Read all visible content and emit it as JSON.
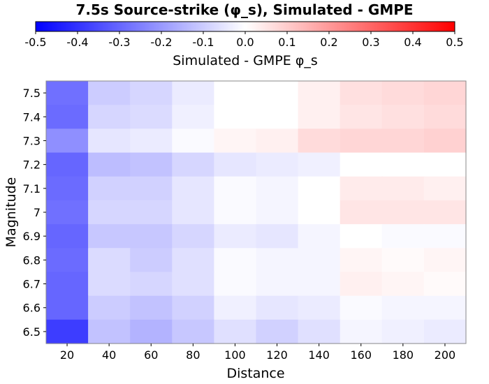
{
  "chart_data": {
    "type": "heatmap",
    "title": "7.5s Source-strike (φ_s), Simulated - GMPE",
    "colorbar": {
      "label": "Simulated - GMPE φ_s",
      "range": [
        -0.5,
        0.5
      ],
      "ticks": [
        "-0.5",
        "-0.4",
        "-0.3",
        "-0.2",
        "-0.1",
        "0.0",
        "0.1",
        "0.2",
        "0.3",
        "0.4",
        "0.5"
      ],
      "colors": {
        "low": "#0000ff",
        "mid": "#ffffff",
        "high": "#ff0000"
      }
    },
    "xlabel": "Distance",
    "ylabel": "Magnitude",
    "x": [
      20,
      40,
      60,
      80,
      100,
      120,
      140,
      160,
      180,
      200
    ],
    "x_tick_labels": [
      "20",
      "40",
      "60",
      "80",
      "100",
      "120",
      "140",
      "160",
      "180",
      "200"
    ],
    "y": [
      "7.5",
      "7.4",
      "7.3",
      "7.2",
      "7.1",
      "7",
      "6.9",
      "6.8",
      "6.7",
      "6.6",
      "6.5"
    ],
    "values": [
      [
        -0.28,
        -0.1,
        -0.08,
        -0.04,
        0.0,
        0.0,
        0.03,
        0.06,
        0.07,
        0.08
      ],
      [
        -0.29,
        -0.08,
        -0.07,
        -0.03,
        0.0,
        0.0,
        0.03,
        0.05,
        0.06,
        0.07
      ],
      [
        -0.22,
        -0.05,
        -0.04,
        -0.01,
        0.02,
        0.03,
        0.07,
        0.08,
        0.08,
        0.09
      ],
      [
        -0.3,
        -0.13,
        -0.12,
        -0.08,
        -0.05,
        -0.04,
        -0.03,
        0.0,
        0.0,
        0.0
      ],
      [
        -0.29,
        -0.09,
        -0.09,
        -0.05,
        -0.01,
        -0.02,
        0.0,
        0.04,
        0.04,
        0.03
      ],
      [
        -0.28,
        -0.08,
        -0.08,
        -0.05,
        -0.01,
        -0.02,
        0.0,
        0.05,
        0.05,
        0.05
      ],
      [
        -0.3,
        -0.11,
        -0.11,
        -0.08,
        -0.04,
        -0.05,
        -0.02,
        0.0,
        -0.01,
        -0.01
      ],
      [
        -0.29,
        -0.07,
        -0.1,
        -0.06,
        -0.01,
        -0.02,
        -0.02,
        0.02,
        0.01,
        0.02
      ],
      [
        -0.3,
        -0.07,
        -0.08,
        -0.06,
        -0.01,
        -0.02,
        -0.02,
        0.03,
        0.02,
        0.01
      ],
      [
        -0.3,
        -0.1,
        -0.12,
        -0.09,
        -0.03,
        -0.05,
        -0.04,
        -0.01,
        -0.02,
        -0.02
      ],
      [
        -0.38,
        -0.12,
        -0.15,
        -0.11,
        -0.06,
        -0.09,
        -0.06,
        -0.02,
        -0.03,
        -0.04
      ]
    ],
    "grid": false
  }
}
